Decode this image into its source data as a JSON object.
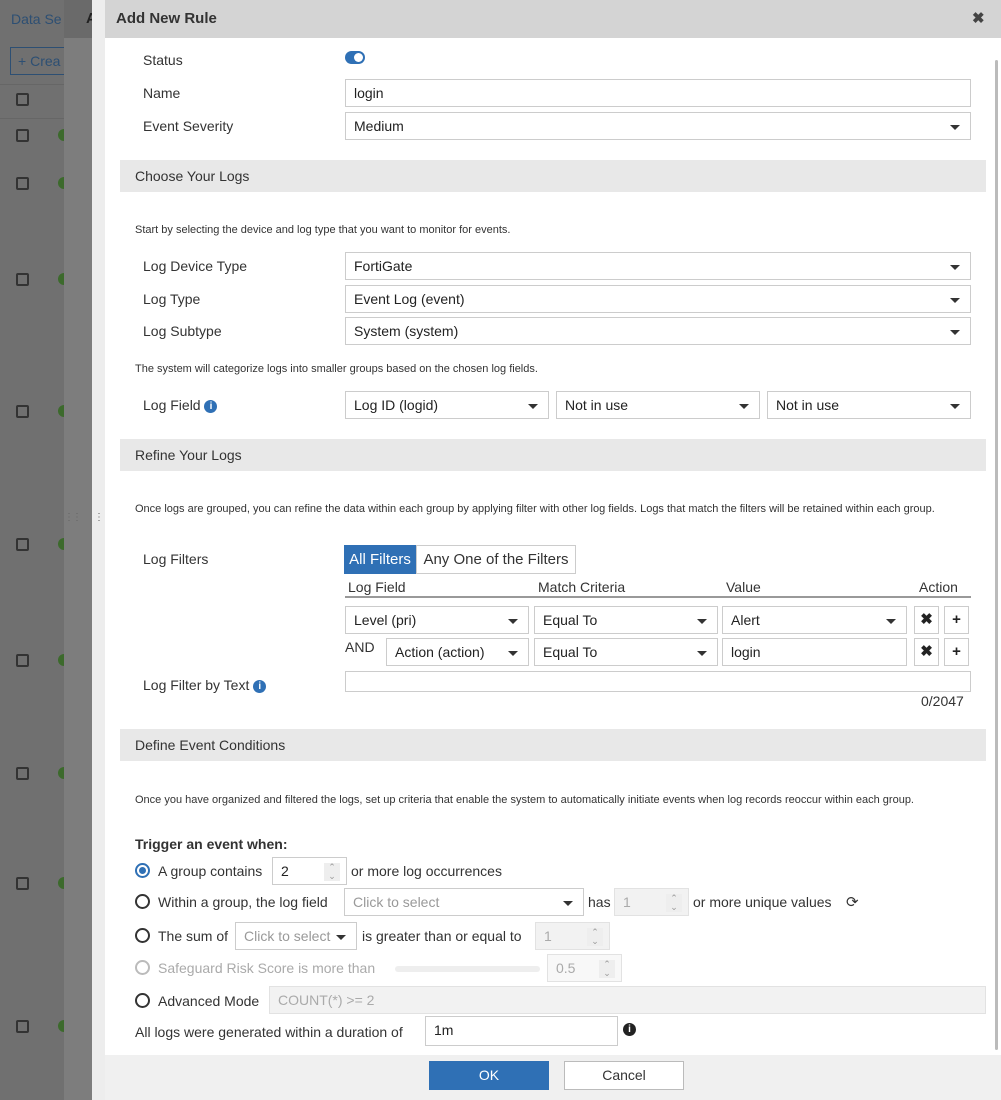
{
  "background": {
    "title": "Data Se",
    "create_label": "Crea",
    "panel_title": "A"
  },
  "dialog": {
    "title": "Add New Rule",
    "status_label": "Status",
    "status_on": true,
    "name_label": "Name",
    "name_value": "login",
    "severity_label": "Event Severity",
    "severity_value": "Medium",
    "choose": {
      "header": "Choose Your Logs",
      "help": "Start by selecting the device and log type that you want to monitor for events.",
      "device_type_label": "Log Device Type",
      "device_type_value": "FortiGate",
      "log_type_label": "Log Type",
      "log_type_value": "Event Log (event)",
      "subtype_label": "Log Subtype",
      "subtype_value": "System (system)",
      "help2": "The system will categorize logs into smaller groups based on the chosen log fields.",
      "log_field_label": "Log Field",
      "log_fields": [
        "Log ID (logid)",
        "Not in use",
        "Not in use"
      ]
    },
    "refine": {
      "header": "Refine Your Logs",
      "help": "Once logs are grouped, you can refine the data within each group by applying filter with other log fields. Logs that match the filters will be retained within each group.",
      "filters_label": "Log Filters",
      "mode_tabs": [
        "All Filters",
        "Any One of the Filters"
      ],
      "active_mode": "All Filters",
      "columns": [
        "Log Field",
        "Match Criteria",
        "Value",
        "Action"
      ],
      "rows": [
        {
          "conj": "",
          "field": "Level (pri)",
          "criteria": "Equal To",
          "value": "Alert"
        },
        {
          "conj": "AND",
          "field": "Action (action)",
          "criteria": "Equal To",
          "value": "login"
        }
      ],
      "text_filter_label": "Log Filter by Text",
      "text_filter_value": "",
      "char_count": "0/2047"
    },
    "conditions": {
      "header": "Define Event Conditions",
      "help": "Once you have organized and filtered the logs, set up criteria that enable the system to automatically initiate events when log records reoccur within each group.",
      "trigger_label": "Trigger an event when:",
      "opt1_pre": "A group contains",
      "opt1_value": "2",
      "opt1_post": "or more log occurrences",
      "opt2_pre": "Within a group, the log field",
      "opt2_placeholder": "Click to select",
      "opt2_mid": "has",
      "opt2_value": "1",
      "opt2_post": "or more unique values",
      "opt3_pre": "The sum of",
      "opt3_placeholder": "Click to select",
      "opt3_mid": "is greater than or equal to",
      "opt3_value": "1",
      "opt4_label": "Safeguard Risk Score is more than",
      "opt4_value": "0.5",
      "opt5_label": "Advanced Mode",
      "opt5_value": "COUNT(*) >= 2",
      "selected": "opt1",
      "duration_label": "All logs were generated within a duration of",
      "duration_value": "1m"
    },
    "ok_label": "OK",
    "cancel_label": "Cancel"
  },
  "colors": {
    "accent": "#2f70b5",
    "section_bg": "#e8e8e8",
    "header_bg": "#d4d4d4"
  }
}
